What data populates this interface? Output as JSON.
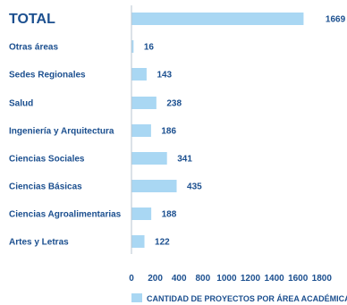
{
  "chart_data": {
    "type": "bar",
    "orientation": "horizontal",
    "categories": [
      "TOTAL",
      "Otras áreas",
      "Sedes Regionales",
      "Salud",
      "Ingeniería y Arquitectura",
      "Ciencias Sociales",
      "Ciencias Básicas",
      "Ciencias Agroalimentarias",
      "Artes y Letras"
    ],
    "values": [
      1669,
      16,
      143,
      238,
      186,
      341,
      435,
      188,
      122
    ],
    "x_ticks": [
      0,
      200,
      400,
      800,
      1000,
      1200,
      1400,
      1600,
      1800
    ],
    "xlim": [
      0,
      1800
    ],
    "series": [
      {
        "name": "CANTIDAD DE PROYECTOS POR ÁREA ACADÉMICA"
      }
    ],
    "grid": false,
    "legend_position": "bottom",
    "colors": {
      "bar": "#a9d7f3",
      "text": "#1b4f8f"
    }
  }
}
